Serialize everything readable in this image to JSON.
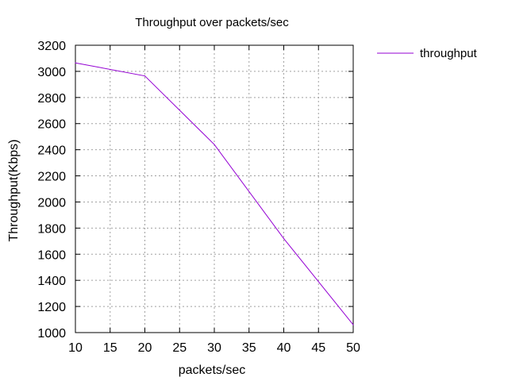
{
  "chart_data": {
    "type": "line",
    "title": "Throughput over packets/sec",
    "xlabel": "packets/sec",
    "ylabel": "Throughput(Kbps)",
    "xlim": [
      10,
      50
    ],
    "ylim": [
      1000,
      3200
    ],
    "xticks": [
      10,
      15,
      20,
      25,
      30,
      35,
      40,
      45,
      50
    ],
    "yticks": [
      1000,
      1200,
      1400,
      1600,
      1800,
      2000,
      2200,
      2400,
      2600,
      2800,
      3000,
      3200
    ],
    "grid": true,
    "legend_position": "outside-top-right",
    "series": [
      {
        "name": "throughput",
        "color": "#9400d3",
        "x": [
          10,
          20,
          30,
          40,
          50
        ],
        "y": [
          3065,
          2965,
          2440,
          1720,
          1060
        ]
      }
    ]
  }
}
